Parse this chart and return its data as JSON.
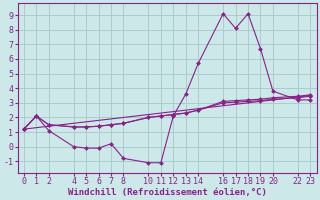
{
  "background_color": "#cce8e8",
  "grid_color": "#aacccc",
  "line_color": "#882288",
  "xlabel": "Windchill (Refroidissement éolien,°C)",
  "xlim": [
    -0.5,
    23.5
  ],
  "ylim": [
    -1.8,
    9.8
  ],
  "xticks": [
    0,
    1,
    2,
    4,
    5,
    6,
    7,
    8,
    10,
    11,
    12,
    13,
    14,
    16,
    17,
    18,
    19,
    20,
    22,
    23
  ],
  "yticks": [
    -1,
    0,
    1,
    2,
    3,
    4,
    5,
    6,
    7,
    8,
    9
  ],
  "lines": [
    {
      "x": [
        0,
        1,
        2,
        4,
        5,
        6,
        7,
        8,
        10,
        11,
        12,
        13,
        14,
        16,
        17,
        18,
        19,
        20,
        22,
        23
      ],
      "y": [
        1.2,
        2.1,
        1.1,
        0.0,
        -0.1,
        -0.1,
        0.2,
        -0.8,
        -1.1,
        -1.1,
        2.1,
        3.6,
        5.7,
        9.1,
        8.1,
        9.1,
        6.7,
        3.8,
        3.2,
        3.2
      ]
    },
    {
      "x": [
        0,
        1,
        2,
        4,
        5,
        6,
        7,
        8,
        10,
        11,
        12,
        13,
        14,
        16,
        17,
        18,
        19,
        20,
        22,
        23
      ],
      "y": [
        1.2,
        2.1,
        1.5,
        1.35,
        1.35,
        1.4,
        1.5,
        1.6,
        2.0,
        2.1,
        2.2,
        2.3,
        2.5,
        3.1,
        3.15,
        3.2,
        3.25,
        3.35,
        3.45,
        3.55
      ]
    },
    {
      "x": [
        0,
        1,
        2,
        4,
        5,
        6,
        7,
        8,
        10,
        11,
        12,
        13,
        14,
        16,
        17,
        18,
        19,
        20,
        22,
        23
      ],
      "y": [
        1.2,
        2.1,
        1.5,
        1.35,
        1.35,
        1.4,
        1.5,
        1.6,
        2.0,
        2.1,
        2.2,
        2.3,
        2.5,
        3.0,
        3.05,
        3.1,
        3.15,
        3.25,
        3.35,
        3.45
      ]
    },
    {
      "x": [
        0,
        23
      ],
      "y": [
        1.2,
        3.5
      ]
    }
  ],
  "marker": "D",
  "markersize": 2.0,
  "linewidth": 0.8,
  "xlabel_fontsize": 6.5,
  "tick_fontsize": 6.0,
  "tick_color": "#882288",
  "spine_color": "#882288",
  "label_color": "#882288"
}
